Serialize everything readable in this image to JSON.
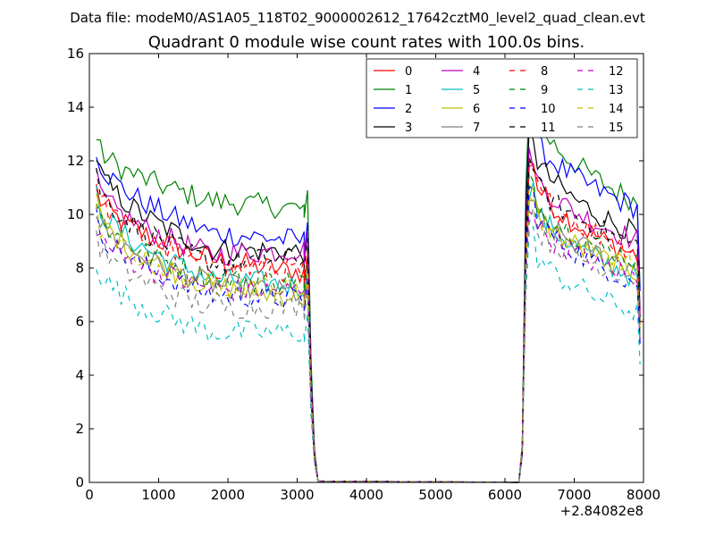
{
  "figure": {
    "suptitle": "Data file: modeM0/AS1A05_118T02_9000002612_17642cztM0_level2_quad_clean.evt"
  },
  "chart_data": {
    "type": "line",
    "title": "Quadrant 0 module wise count rates with 100.0s bins.",
    "xlabel": "",
    "ylabel": "",
    "x_offset_label": "+2.84082e8",
    "xlim": [
      0,
      8000
    ],
    "ylim": [
      0,
      16
    ],
    "xticks": [
      0,
      1000,
      2000,
      3000,
      4000,
      5000,
      6000,
      7000,
      8000
    ],
    "yticks": [
      0,
      2,
      4,
      6,
      8,
      10,
      12,
      14,
      16
    ],
    "legend_position": "upper-right",
    "legend_columns": 4,
    "series": [
      {
        "name": "0",
        "color": "#ff0000",
        "dash": "solid",
        "level": [
          11.0,
          8.3,
          7.8,
          12.0,
          8.4
        ]
      },
      {
        "name": "1",
        "color": "#008000",
        "dash": "solid",
        "level": [
          12.8,
          10.5,
          10.2,
          14.6,
          10.4
        ]
      },
      {
        "name": "2",
        "color": "#0000ff",
        "dash": "solid",
        "level": [
          12.5,
          9.3,
          9.0,
          13.5,
          10.2
        ]
      },
      {
        "name": "3",
        "color": "#000000",
        "dash": "solid",
        "level": [
          12.2,
          8.7,
          8.6,
          13.0,
          9.2
        ]
      },
      {
        "name": "4",
        "color": "#bf00bf",
        "dash": "solid",
        "level": [
          11.3,
          8.5,
          8.7,
          12.1,
          9.0
        ]
      },
      {
        "name": "5",
        "color": "#00bfbf",
        "dash": "solid",
        "level": [
          10.8,
          7.6,
          7.3,
          11.0,
          7.6
        ]
      },
      {
        "name": "6",
        "color": "#bfbf00",
        "dash": "solid",
        "level": [
          10.5,
          7.3,
          6.9,
          10.8,
          7.8
        ]
      },
      {
        "name": "7",
        "color": "#808080",
        "dash": "solid",
        "level": [
          10.2,
          7.4,
          7.0,
          10.6,
          8.0
        ]
      },
      {
        "name": "8",
        "color": "#ff0000",
        "dash": "dashed",
        "level": [
          11.2,
          8.0,
          7.9,
          11.8,
          8.6
        ]
      },
      {
        "name": "9",
        "color": "#008000",
        "dash": "dashed",
        "level": [
          10.4,
          7.6,
          7.5,
          11.2,
          8.2
        ]
      },
      {
        "name": "10",
        "color": "#0000ff",
        "dash": "dashed",
        "level": [
          9.9,
          7.0,
          6.8,
          10.8,
          7.4
        ]
      },
      {
        "name": "11",
        "color": "#000000",
        "dash": "dashed",
        "level": [
          11.5,
          8.2,
          8.4,
          11.9,
          8.8
        ]
      },
      {
        "name": "12",
        "color": "#bf00bf",
        "dash": "dashed",
        "level": [
          9.6,
          7.2,
          7.1,
          10.3,
          7.6
        ]
      },
      {
        "name": "13",
        "color": "#00bfbf",
        "dash": "dashed",
        "level": [
          8.3,
          5.6,
          5.6,
          9.2,
          6.3
        ]
      },
      {
        "name": "14",
        "color": "#bfbf00",
        "dash": "dashed",
        "level": [
          10.0,
          7.4,
          7.2,
          10.6,
          8.0
        ]
      },
      {
        "name": "15",
        "color": "#808080",
        "dash": "dashed",
        "level": [
          9.3,
          6.5,
          6.6,
          10.1,
          7.6
        ]
      }
    ],
    "segments": {
      "seg1_x": [
        100,
        3150
      ],
      "drop_end_x": 3300,
      "gap_zero_x": [
        3300,
        6200
      ],
      "seg2_x": [
        6350,
        7950
      ]
    }
  }
}
